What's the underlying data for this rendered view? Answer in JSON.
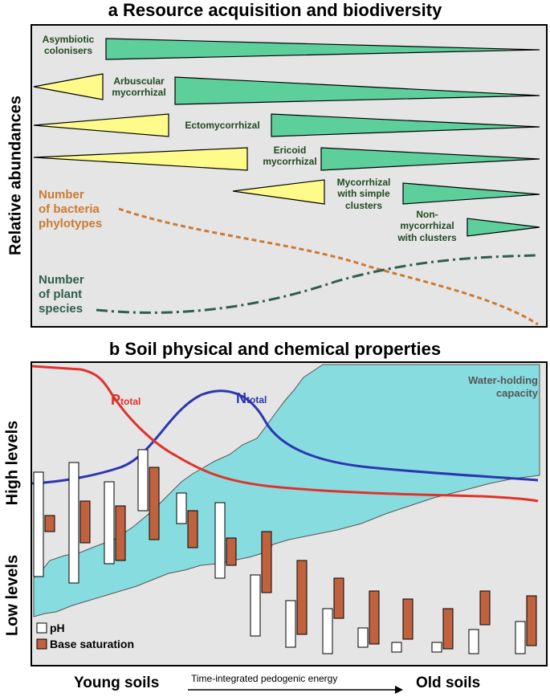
{
  "panel_a": {
    "title": "a  Resource acquisition and biodiversity",
    "y_axis_label": "Relative abundances",
    "groups": [
      {
        "label": "Asymbiotic\ncolonisers"
      },
      {
        "label": "Arbuscular\nmycorrhizal"
      },
      {
        "label": "Ectomycorrhizal"
      },
      {
        "label": "Ericoid\nmycorrhizal"
      },
      {
        "label": "Mycorrhizal\nwith simple\nclusters"
      },
      {
        "label": "Non-\nmycorrhizal\nwith clusters"
      }
    ],
    "bacteria_label": "Number\nof bacteria\nphylotypes",
    "plant_label": "Number\nof plant\nspecies",
    "colors": {
      "green": "#5ccf9b",
      "yellow": "#fffb8a",
      "orange": "#cc7a30",
      "darkgreen": "#2f5f4a"
    }
  },
  "panel_b": {
    "title": "b  Soil physical and chemical properties",
    "y_high": "High levels",
    "y_low": "Low levels",
    "p_label": "P",
    "p_sub": "total",
    "n_label": "N",
    "n_sub": "total",
    "water_label": "Water-holding\ncapacity",
    "legend": {
      "ph": "pH",
      "base": "Base saturation"
    },
    "colors": {
      "p": "#e0322b",
      "n": "#2b37b0",
      "water": "#87dcdf",
      "ph": "#ffffff",
      "base": "#c1623f"
    }
  },
  "x_axis": {
    "left": "Young soils",
    "middle": "Time-integrated pedogenic energy",
    "right": "Old soils"
  }
}
